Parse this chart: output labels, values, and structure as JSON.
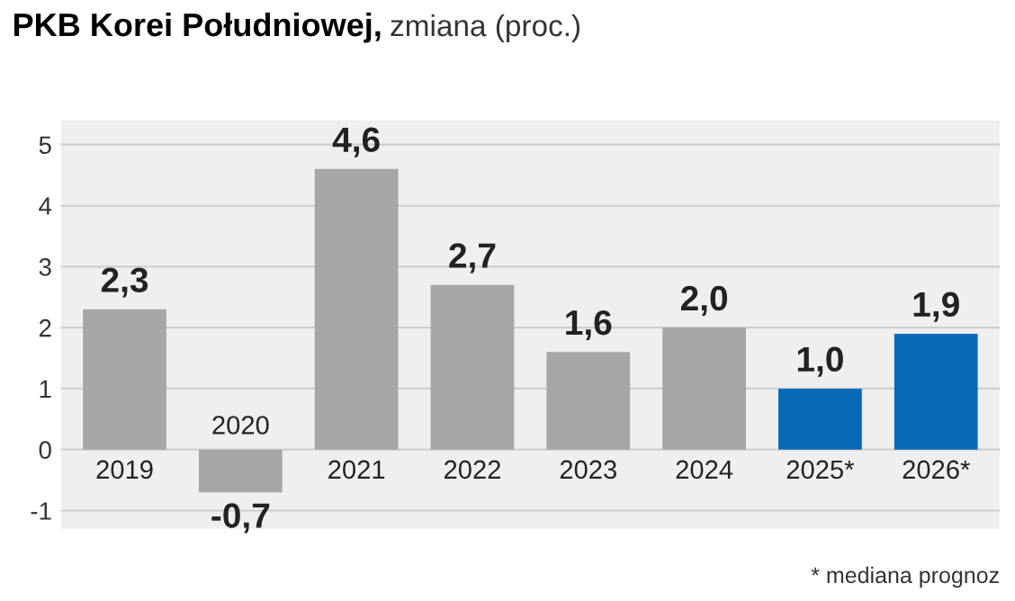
{
  "chart_data": {
    "type": "bar",
    "title": "PKB Korei Południowej,",
    "subtitle": "zmiana (proc.)",
    "categories": [
      "2019",
      "2020",
      "2021",
      "2022",
      "2023",
      "2024",
      "2025*",
      "2026*"
    ],
    "values": [
      2.3,
      -0.7,
      4.6,
      2.7,
      1.6,
      2.0,
      1.0,
      1.9
    ],
    "colors": [
      "#a6a6a6",
      "#a6a6a6",
      "#a6a6a6",
      "#a6a6a6",
      "#a6a6a6",
      "#a6a6a6",
      "#0a6ab8",
      "#0a6ab8"
    ],
    "value_labels": [
      "2,3",
      "-0,7",
      "4,6",
      "2,7",
      "1,6",
      "2,0",
      "1,0",
      "1,9"
    ],
    "ylim": [
      -1.3,
      5.4
    ],
    "yticks": [
      -1,
      0,
      1,
      2,
      3,
      4,
      5
    ],
    "grid": "y",
    "annotations": [
      "* mediana prognoz"
    ]
  }
}
